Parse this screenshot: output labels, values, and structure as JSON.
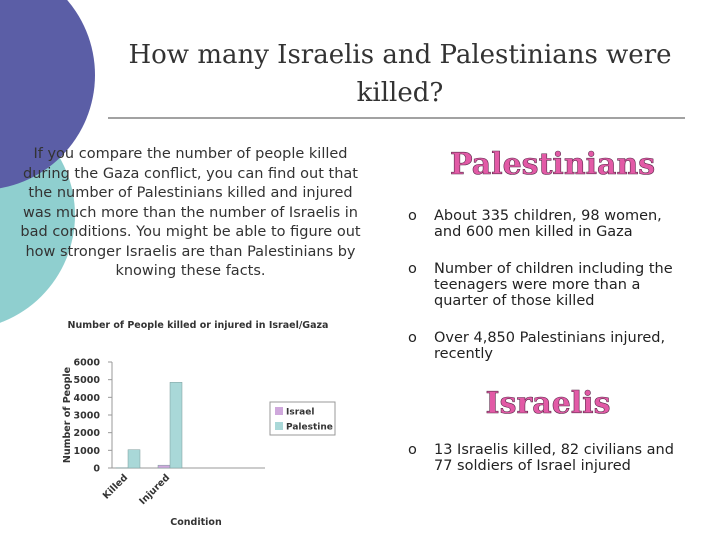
{
  "title": "How many Israelis and Palestinians were killed?",
  "intro": "If you compare the number of people killed during the Gaza conflict, you can find out that the number of Palestinians killed and injured was much more than the number of Israelis in bad conditions. You might be able to figure out how stronger Israelis are than Palestinians by knowing these facts.",
  "sections": [
    {
      "heading": "Palestinians",
      "bullets": [
        "About 335 children, 98 women, and 600 men killed in Gaza",
        "Number of children including the teenagers were more than a quarter of those killed",
        "Over 4,850 Palestinians injured, recently"
      ]
    },
    {
      "heading": "Israelis",
      "bullets": [
        "13 Israelis killed, 82 civilians and 77 soldiers of Israel injured"
      ]
    }
  ],
  "chart_data": {
    "type": "bar",
    "title": "Number of People killed or injured in Israel/Gaza",
    "x_label": "Condition",
    "y_label": "Number of People",
    "categories": [
      "Killed",
      "Injured"
    ],
    "series": [
      {
        "name": "Israel",
        "color": "#cfa8dc",
        "values": [
          13,
          159
        ]
      },
      {
        "name": "Palestine",
        "color": "#a9d8d8",
        "values": [
          1033,
          4850
        ]
      }
    ],
    "ylim": [
      0,
      6000
    ],
    "yticks": [
      0,
      1000,
      2000,
      3000,
      4000,
      5000,
      6000
    ],
    "grid": false
  }
}
